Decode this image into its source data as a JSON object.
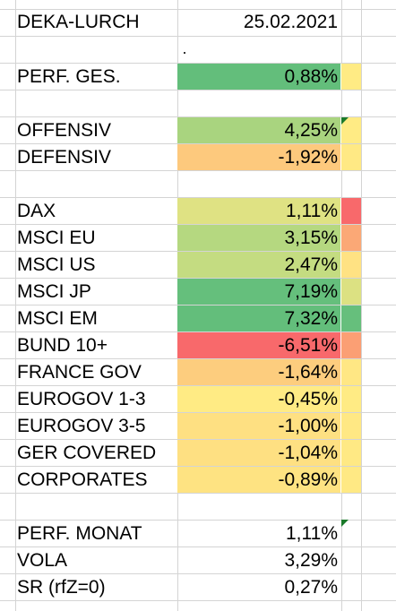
{
  "header": {
    "name": "DEKA-LURCH",
    "date": "25.02.2021"
  },
  "perf_total": {
    "label": "PERF. GES.",
    "value": "0,88%",
    "color": "#63be7b",
    "side_color": "#ffeb84"
  },
  "strategy": [
    {
      "label": "OFFENSIV",
      "value": "4,25%",
      "color": "#a9d47f",
      "side_color": "#ffeb84"
    },
    {
      "label": "DEFENSIV",
      "value": "-1,92%",
      "color": "#fdc97d",
      "side_color": "#ffe984"
    }
  ],
  "assets": [
    {
      "label": "DAX",
      "value": "1,11%",
      "color": "#dfe283",
      "side_color": "#f8696b"
    },
    {
      "label": "MSCI EU",
      "value": "3,15%",
      "color": "#b5d880",
      "side_color": "#fba876"
    },
    {
      "label": "MSCI US",
      "value": "2,47%",
      "color": "#c4dc81",
      "side_color": "#ffe283"
    },
    {
      "label": "MSCI JP",
      "value": "7,19%",
      "color": "#65bf7c",
      "side_color": "#dce182"
    },
    {
      "label": "MSCI EM",
      "value": "7,32%",
      "color": "#63be7b",
      "side_color": "#66bf7c"
    },
    {
      "label": "BUND 10+",
      "value": "-6,51%",
      "color": "#f8696b",
      "side_color": "#fb9f74"
    },
    {
      "label": "FRANCE GOV",
      "value": "-1,64%",
      "color": "#fdcd7e",
      "side_color": "#ffe784"
    },
    {
      "label": "EUROGOV 1-3",
      "value": "-0,45%",
      "color": "#ffeb84",
      "side_color": "#ffeb84"
    },
    {
      "label": "EUROGOV 3-5",
      "value": "-1,00%",
      "color": "#fee082",
      "side_color": "#ffe884"
    },
    {
      "label": "GER COVERED",
      "value": "-1,04%",
      "color": "#fee082",
      "side_color": "#ffe984"
    },
    {
      "label": "CORPORATES",
      "value": "-0,89%",
      "color": "#fee382",
      "side_color": "#ffe984"
    }
  ],
  "stats": [
    {
      "label": "PERF. MONAT",
      "value": "1,11%"
    },
    {
      "label": "VOLA",
      "value": "3,29%"
    },
    {
      "label": "SR (rfZ=0)",
      "value": "0,27%"
    }
  ]
}
